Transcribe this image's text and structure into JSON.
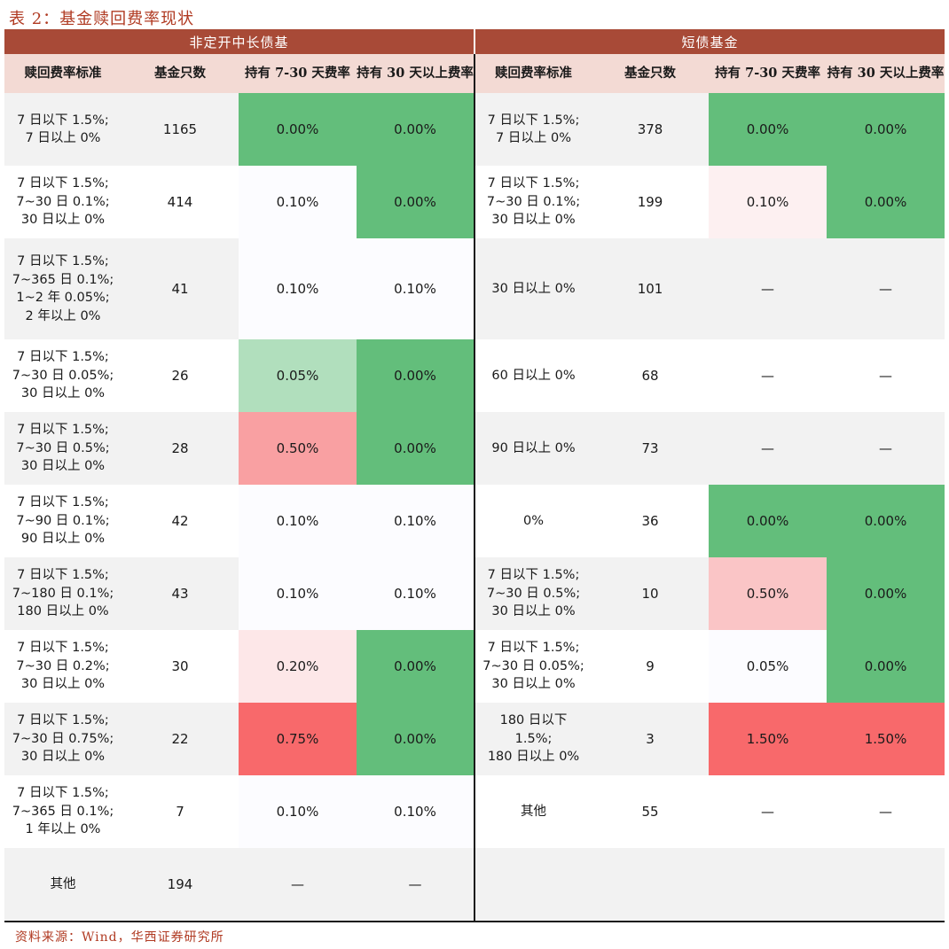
{
  "title": "表 2：基金赎回费率现状",
  "source": "资料来源：Wind，华西证券研究所",
  "colors": {
    "header_group_bg": "#a84a37",
    "header_sub_bg": "#f3dad4",
    "green_dark": "#63be7b",
    "green_light": "#b1dfbd",
    "red_strong": "#f8696b",
    "red_mid": "#f9a0a2",
    "red_soft": "#fac5c6",
    "red_faint": "#fde7e8",
    "neutral": "#fcfcff"
  },
  "group_headers": {
    "left": "非定开中长债基",
    "right": "短债基金"
  },
  "sub_headers": {
    "std": "赎回费率标准",
    "count": "基金只数",
    "rate_7_30": "持有 7-30 天费率",
    "rate_30": "持有 30 天以上费率"
  },
  "left_rows": [
    {
      "std": "7 日以下 1.5%;\n7 日以上 0%",
      "count": "1165",
      "r1": "0.00%",
      "r1_color": "#63be7b",
      "r2": "0.00%",
      "r2_color": "#63be7b"
    },
    {
      "std": "7 日以下 1.5%;\n7~30 日 0.1%;\n30 日以上 0%",
      "count": "414",
      "r1": "0.10%",
      "r1_color": "#fcfcff",
      "r2": "0.00%",
      "r2_color": "#63be7b"
    },
    {
      "std": "7 日以下 1.5%;\n7~365 日 0.1%;\n1~2 年 0.05%;\n2 年以上 0%",
      "count": "41",
      "r1": "0.10%",
      "r1_color": "#fcfcff",
      "r2": "0.10%",
      "r2_color": "#fcfcff"
    },
    {
      "std": "7 日以下 1.5%;\n7~30 日 0.05%;\n30 日以上 0%",
      "count": "26",
      "r1": "0.05%",
      "r1_color": "#b1dfbd",
      "r2": "0.00%",
      "r2_color": "#63be7b"
    },
    {
      "std": "7 日以下 1.5%;\n7~30 日 0.5%;\n30 日以上 0%",
      "count": "28",
      "r1": "0.50%",
      "r1_color": "#f9a0a2",
      "r2": "0.00%",
      "r2_color": "#63be7b"
    },
    {
      "std": "7 日以下 1.5%;\n7~90 日 0.1%;\n90 日以上 0%",
      "count": "42",
      "r1": "0.10%",
      "r1_color": "#fcfcff",
      "r2": "0.10%",
      "r2_color": "#fcfcff"
    },
    {
      "std": "7 日以下 1.5%;\n7~180 日 0.1%;\n180 日以上 0%",
      "count": "43",
      "r1": "0.10%",
      "r1_color": "#fcfcff",
      "r2": "0.10%",
      "r2_color": "#fcfcff"
    },
    {
      "std": "7 日以下 1.5%;\n7~30 日 0.2%;\n30 日以上 0%",
      "count": "30",
      "r1": "0.20%",
      "r1_color": "#fde7e8",
      "r2": "0.00%",
      "r2_color": "#63be7b"
    },
    {
      "std": "7 日以下 1.5%;\n7~30 日 0.75%;\n30 日以上 0%",
      "count": "22",
      "r1": "0.75%",
      "r1_color": "#f8696b",
      "r2": "0.00%",
      "r2_color": "#63be7b"
    },
    {
      "std": "7 日以下 1.5%;\n7~365 日 0.1%;\n1 年以上 0%",
      "count": "7",
      "r1": "0.10%",
      "r1_color": "#fcfcff",
      "r2": "0.10%",
      "r2_color": "#fcfcff"
    },
    {
      "std": "其他",
      "count": "194",
      "r1": "—",
      "r1_color": "",
      "r2": "—",
      "r2_color": ""
    }
  ],
  "right_rows": [
    {
      "std": "7 日以下 1.5%;\n7 日以上 0%",
      "count": "378",
      "r1": "0.00%",
      "r1_color": "#63be7b",
      "r2": "0.00%",
      "r2_color": "#63be7b"
    },
    {
      "std": "7 日以下 1.5%;\n7~30 日 0.1%;\n30 日以上 0%",
      "count": "199",
      "r1": "0.10%",
      "r1_color": "#fdf0f1",
      "r2": "0.00%",
      "r2_color": "#63be7b"
    },
    {
      "std": "30 日以上 0%",
      "count": "101",
      "r1": "—",
      "r1_color": "",
      "r2": "—",
      "r2_color": ""
    },
    {
      "std": "60 日以上 0%",
      "count": "68",
      "r1": "—",
      "r1_color": "",
      "r2": "—",
      "r2_color": ""
    },
    {
      "std": "90 日以上 0%",
      "count": "73",
      "r1": "—",
      "r1_color": "",
      "r2": "—",
      "r2_color": ""
    },
    {
      "std": "0%",
      "count": "36",
      "r1": "0.00%",
      "r1_color": "#63be7b",
      "r2": "0.00%",
      "r2_color": "#63be7b"
    },
    {
      "std": "7 日以下 1.5%;\n7~30 日 0.5%;\n30 日以上 0%",
      "count": "10",
      "r1": "0.50%",
      "r1_color": "#fac5c6",
      "r2": "0.00%",
      "r2_color": "#63be7b"
    },
    {
      "std": "7 日以下 1.5%;\n7~30 日 0.05%;\n30 日以上 0%",
      "count": "9",
      "r1": "0.05%",
      "r1_color": "#fcfcff",
      "r2": "0.00%",
      "r2_color": "#63be7b"
    },
    {
      "std": "180 日以下\n1.5%;\n180 日以上 0%",
      "count": "3",
      "r1": "1.50%",
      "r1_color": "#f8696b",
      "r2": "1.50%",
      "r2_color": "#f8696b"
    },
    {
      "std": "其他",
      "count": "55",
      "r1": "—",
      "r1_color": "",
      "r2": "—",
      "r2_color": ""
    },
    {
      "std": "",
      "count": "",
      "r1": "",
      "r1_color": "",
      "r2": "",
      "r2_color": ""
    }
  ]
}
